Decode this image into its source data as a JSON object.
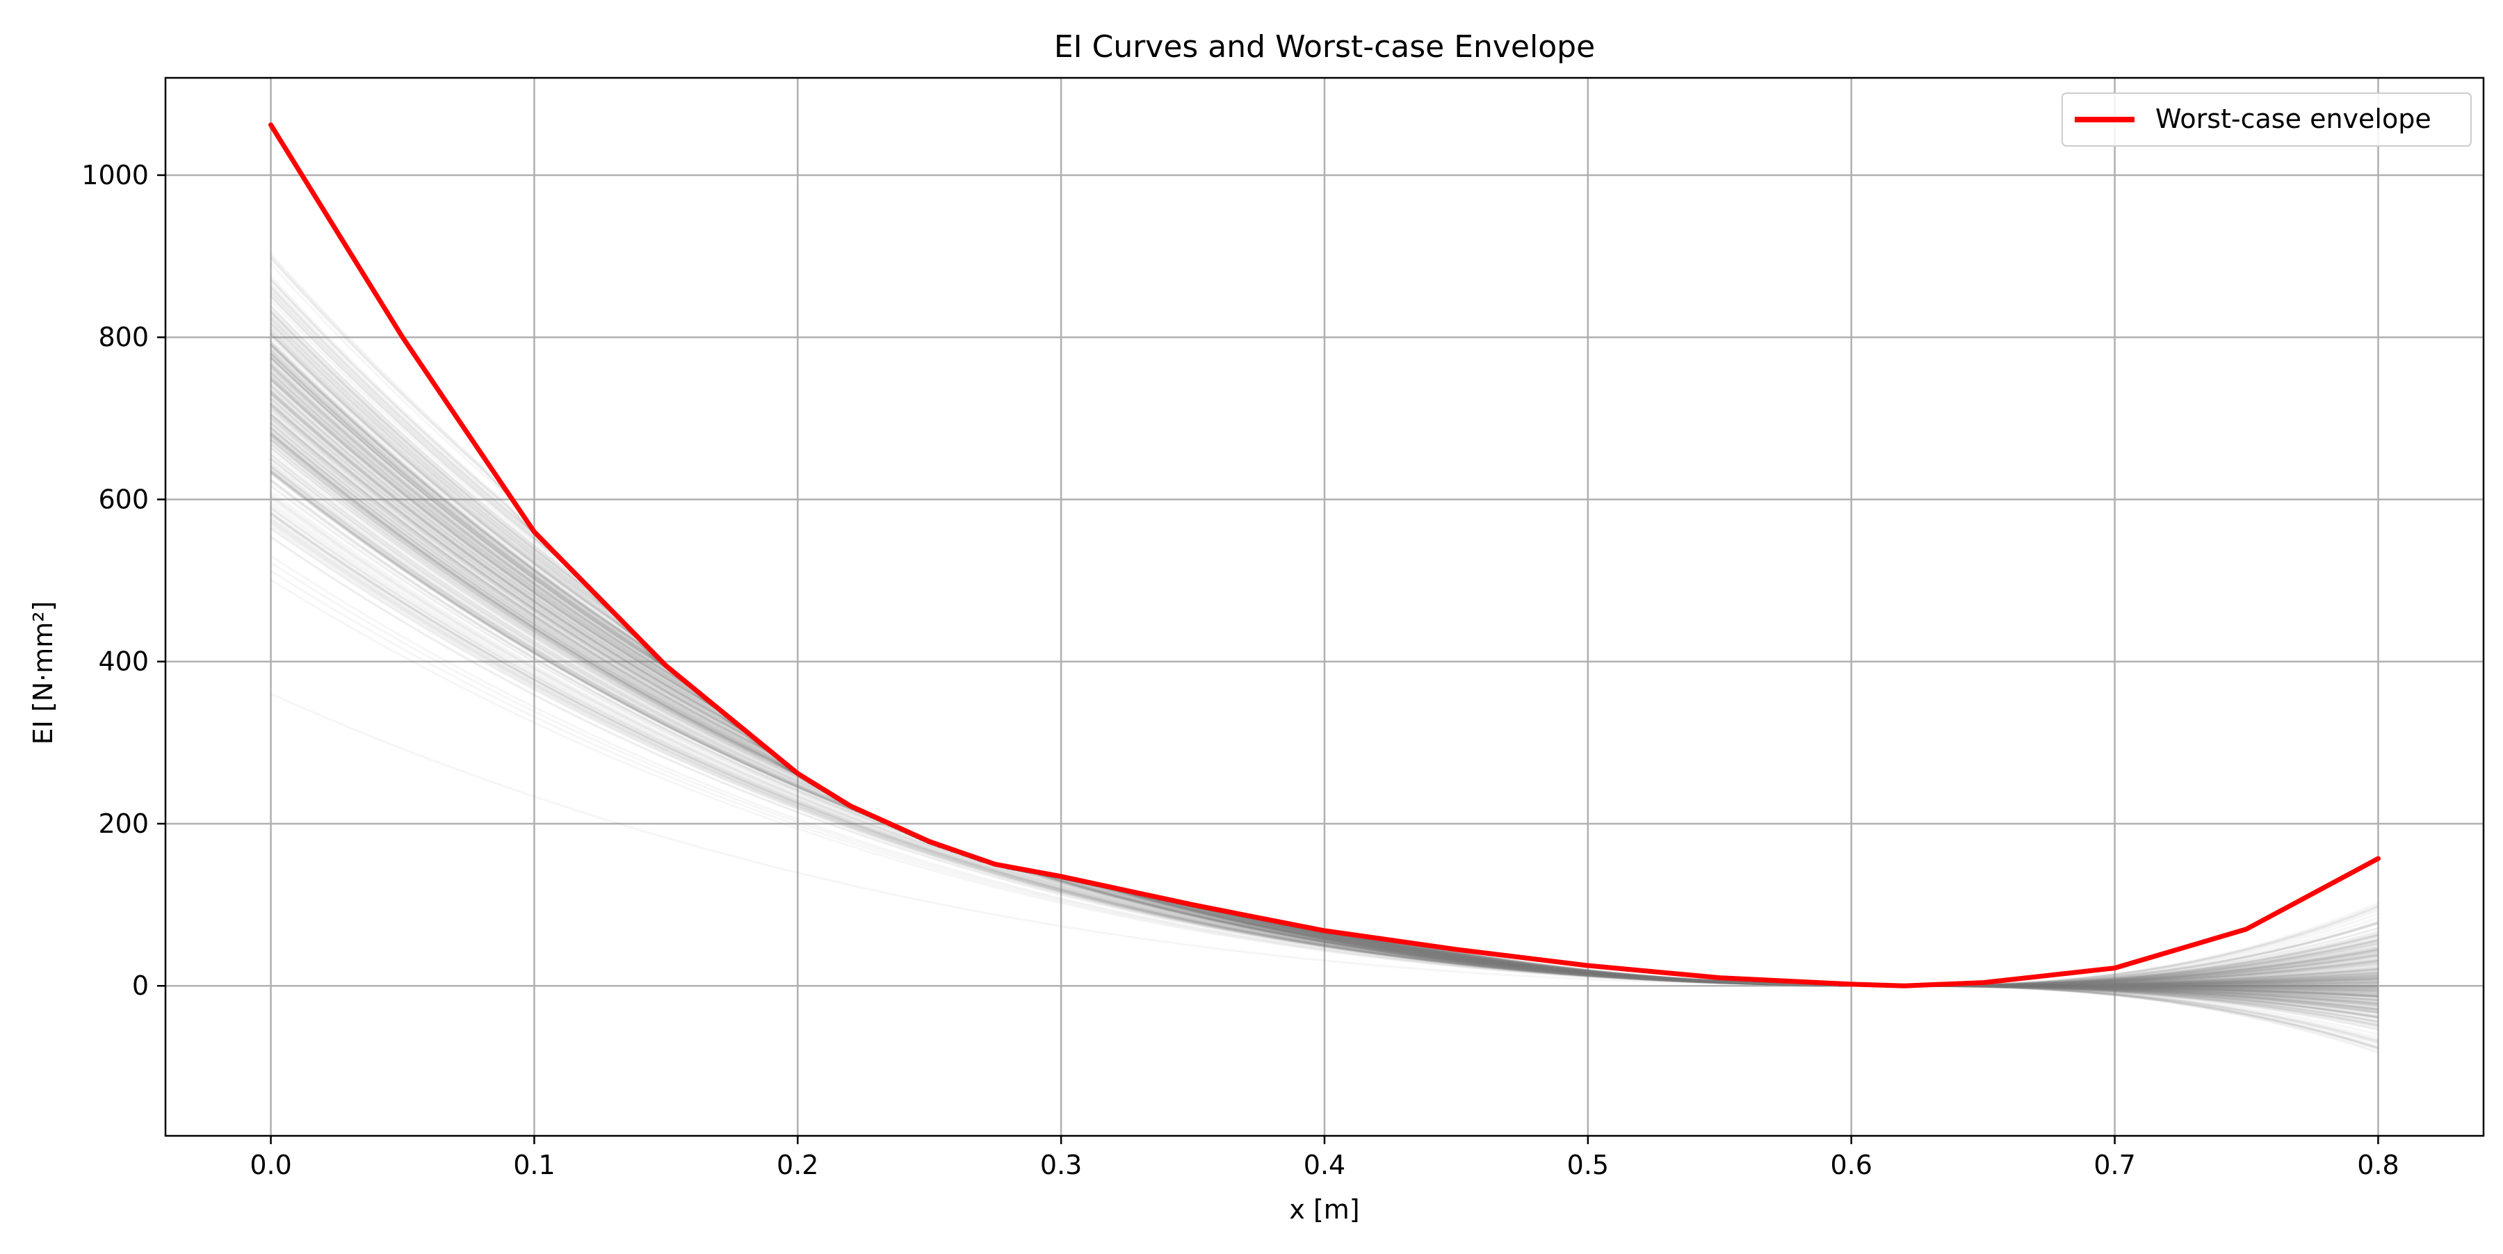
{
  "chart_data": {
    "type": "line",
    "title": "EI Curves and Worst-case Envelope",
    "xlabel": "x [m]",
    "ylabel": "EI [N·mm²]",
    "xlim": [
      -0.04,
      0.84
    ],
    "ylim": [
      -185,
      1120
    ],
    "grid": true,
    "x_ticks": [
      0.0,
      0.1,
      0.2,
      0.3,
      0.4,
      0.5,
      0.6,
      0.7,
      0.8
    ],
    "x_tick_labels": [
      "0.0",
      "0.1",
      "0.2",
      "0.3",
      "0.4",
      "0.5",
      "0.6",
      "0.7",
      "0.8"
    ],
    "y_ticks": [
      0,
      200,
      400,
      600,
      800,
      1000
    ],
    "y_tick_labels": [
      "0",
      "200",
      "400",
      "600",
      "800",
      "1000"
    ],
    "legend": {
      "placement": "top-right",
      "entries": [
        "Worst-case envelope"
      ]
    },
    "colors": {
      "envelope": "#ff0000",
      "samples": "#808080",
      "grid": "#b0b0b0"
    },
    "series": [
      {
        "name": "Worst-case envelope",
        "x": [
          0.0,
          0.05,
          0.1,
          0.15,
          0.2,
          0.22,
          0.25,
          0.275,
          0.3,
          0.35,
          0.4,
          0.45,
          0.5,
          0.55,
          0.6,
          0.62,
          0.65,
          0.7,
          0.75,
          0.8
        ],
        "values": [
          1062,
          800,
          560,
          395,
          262,
          222,
          178,
          150,
          135,
          100,
          68,
          45,
          25,
          10,
          2,
          0,
          4,
          22,
          70,
          157
        ]
      }
    ],
    "sample_curves": {
      "description_count": 300,
      "start_range": [
        360,
        950
      ],
      "end_range": [
        -125,
        150
      ],
      "convergence_x": 0.62
    }
  }
}
